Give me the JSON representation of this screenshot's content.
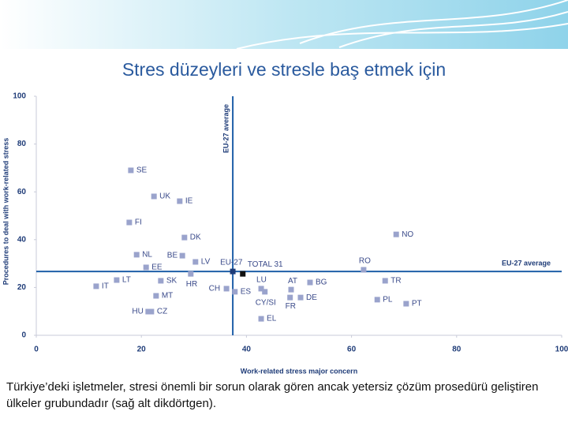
{
  "chart_data": {
    "type": "scatter",
    "title": "Stres düzeyleri ve stresle baş etmek için",
    "xlabel": "Work-related stress major concern",
    "ylabel": "Procedures to deal with work-related stress",
    "point_labels": [
      "SE",
      "UK",
      "IE",
      "FI",
      "NO",
      "DK",
      "NL",
      "BE",
      "EE",
      "LV",
      "RO",
      "EU-27",
      "TOTAL 31",
      "HR",
      "IT",
      "LT",
      "SK",
      "CH",
      "ES",
      "LU",
      "AT",
      "BG",
      "TR",
      "MT",
      "CY/SI",
      "FR",
      "DE",
      "PL",
      "PT",
      "HU",
      "CZ",
      "EL"
    ],
    "x": [
      18.0,
      22.4,
      27.3,
      17.7,
      68.5,
      28.2,
      19.1,
      27.8,
      20.9,
      30.3,
      62.3,
      37.4,
      39.3,
      29.4,
      11.4,
      15.3,
      23.7,
      36.2,
      37.8,
      42.8,
      48.5,
      52.1,
      66.4,
      22.8,
      43.5,
      48.3,
      50.3,
      64.9,
      70.4,
      21.3,
      21.9,
      42.8
    ],
    "values": [
      69.0,
      58.1,
      56.1,
      47.2,
      42.2,
      40.9,
      33.7,
      33.3,
      28.4,
      30.7,
      27.4,
      26.7,
      25.7,
      25.7,
      20.5,
      23.1,
      22.8,
      19.5,
      18.2,
      19.5,
      19.1,
      22.1,
      22.8,
      16.5,
      18.2,
      15.8,
      15.8,
      14.9,
      13.2,
      9.9,
      9.9,
      6.9
    ],
    "point_colors": [
      "#9aa3cc",
      "#9aa3cc",
      "#9aa3cc",
      "#9aa3cc",
      "#9aa3cc",
      "#9aa3cc",
      "#9aa3cc",
      "#9aa3cc",
      "#9aa3cc",
      "#9aa3cc",
      "#9aa3cc",
      "#1f3c78",
      "#111111",
      "#9aa3cc",
      "#9aa3cc",
      "#9aa3cc",
      "#9aa3cc",
      "#9aa3cc",
      "#9aa3cc",
      "#9aa3cc",
      "#9aa3cc",
      "#9aa3cc",
      "#9aa3cc",
      "#9aa3cc",
      "#9aa3cc",
      "#9aa3cc",
      "#9aa3cc",
      "#9aa3cc",
      "#9aa3cc",
      "#9aa3cc",
      "#9aa3cc",
      "#9aa3cc"
    ],
    "xlim": [
      0,
      100
    ],
    "ylim": [
      0,
      100
    ],
    "xticks": [
      0,
      20,
      40,
      60,
      80,
      100
    ],
    "yticks": [
      0,
      20,
      40,
      60,
      80,
      100
    ],
    "reference_lines": [
      {
        "label": "EU-27 average",
        "axis": "x",
        "value": 37.4,
        "color": "#1f5fa8"
      },
      {
        "label": "EU-27 average",
        "axis": "y",
        "value": 26.7,
        "color": "#1f5fa8"
      }
    ]
  },
  "caption": "Türkiye’deki işletmeler, stresi önemli bir sorun olarak gören ancak yetersiz çözüm prosedürü geliştiren ülkeler grubundadır (sağ alt dikdörtgen)."
}
